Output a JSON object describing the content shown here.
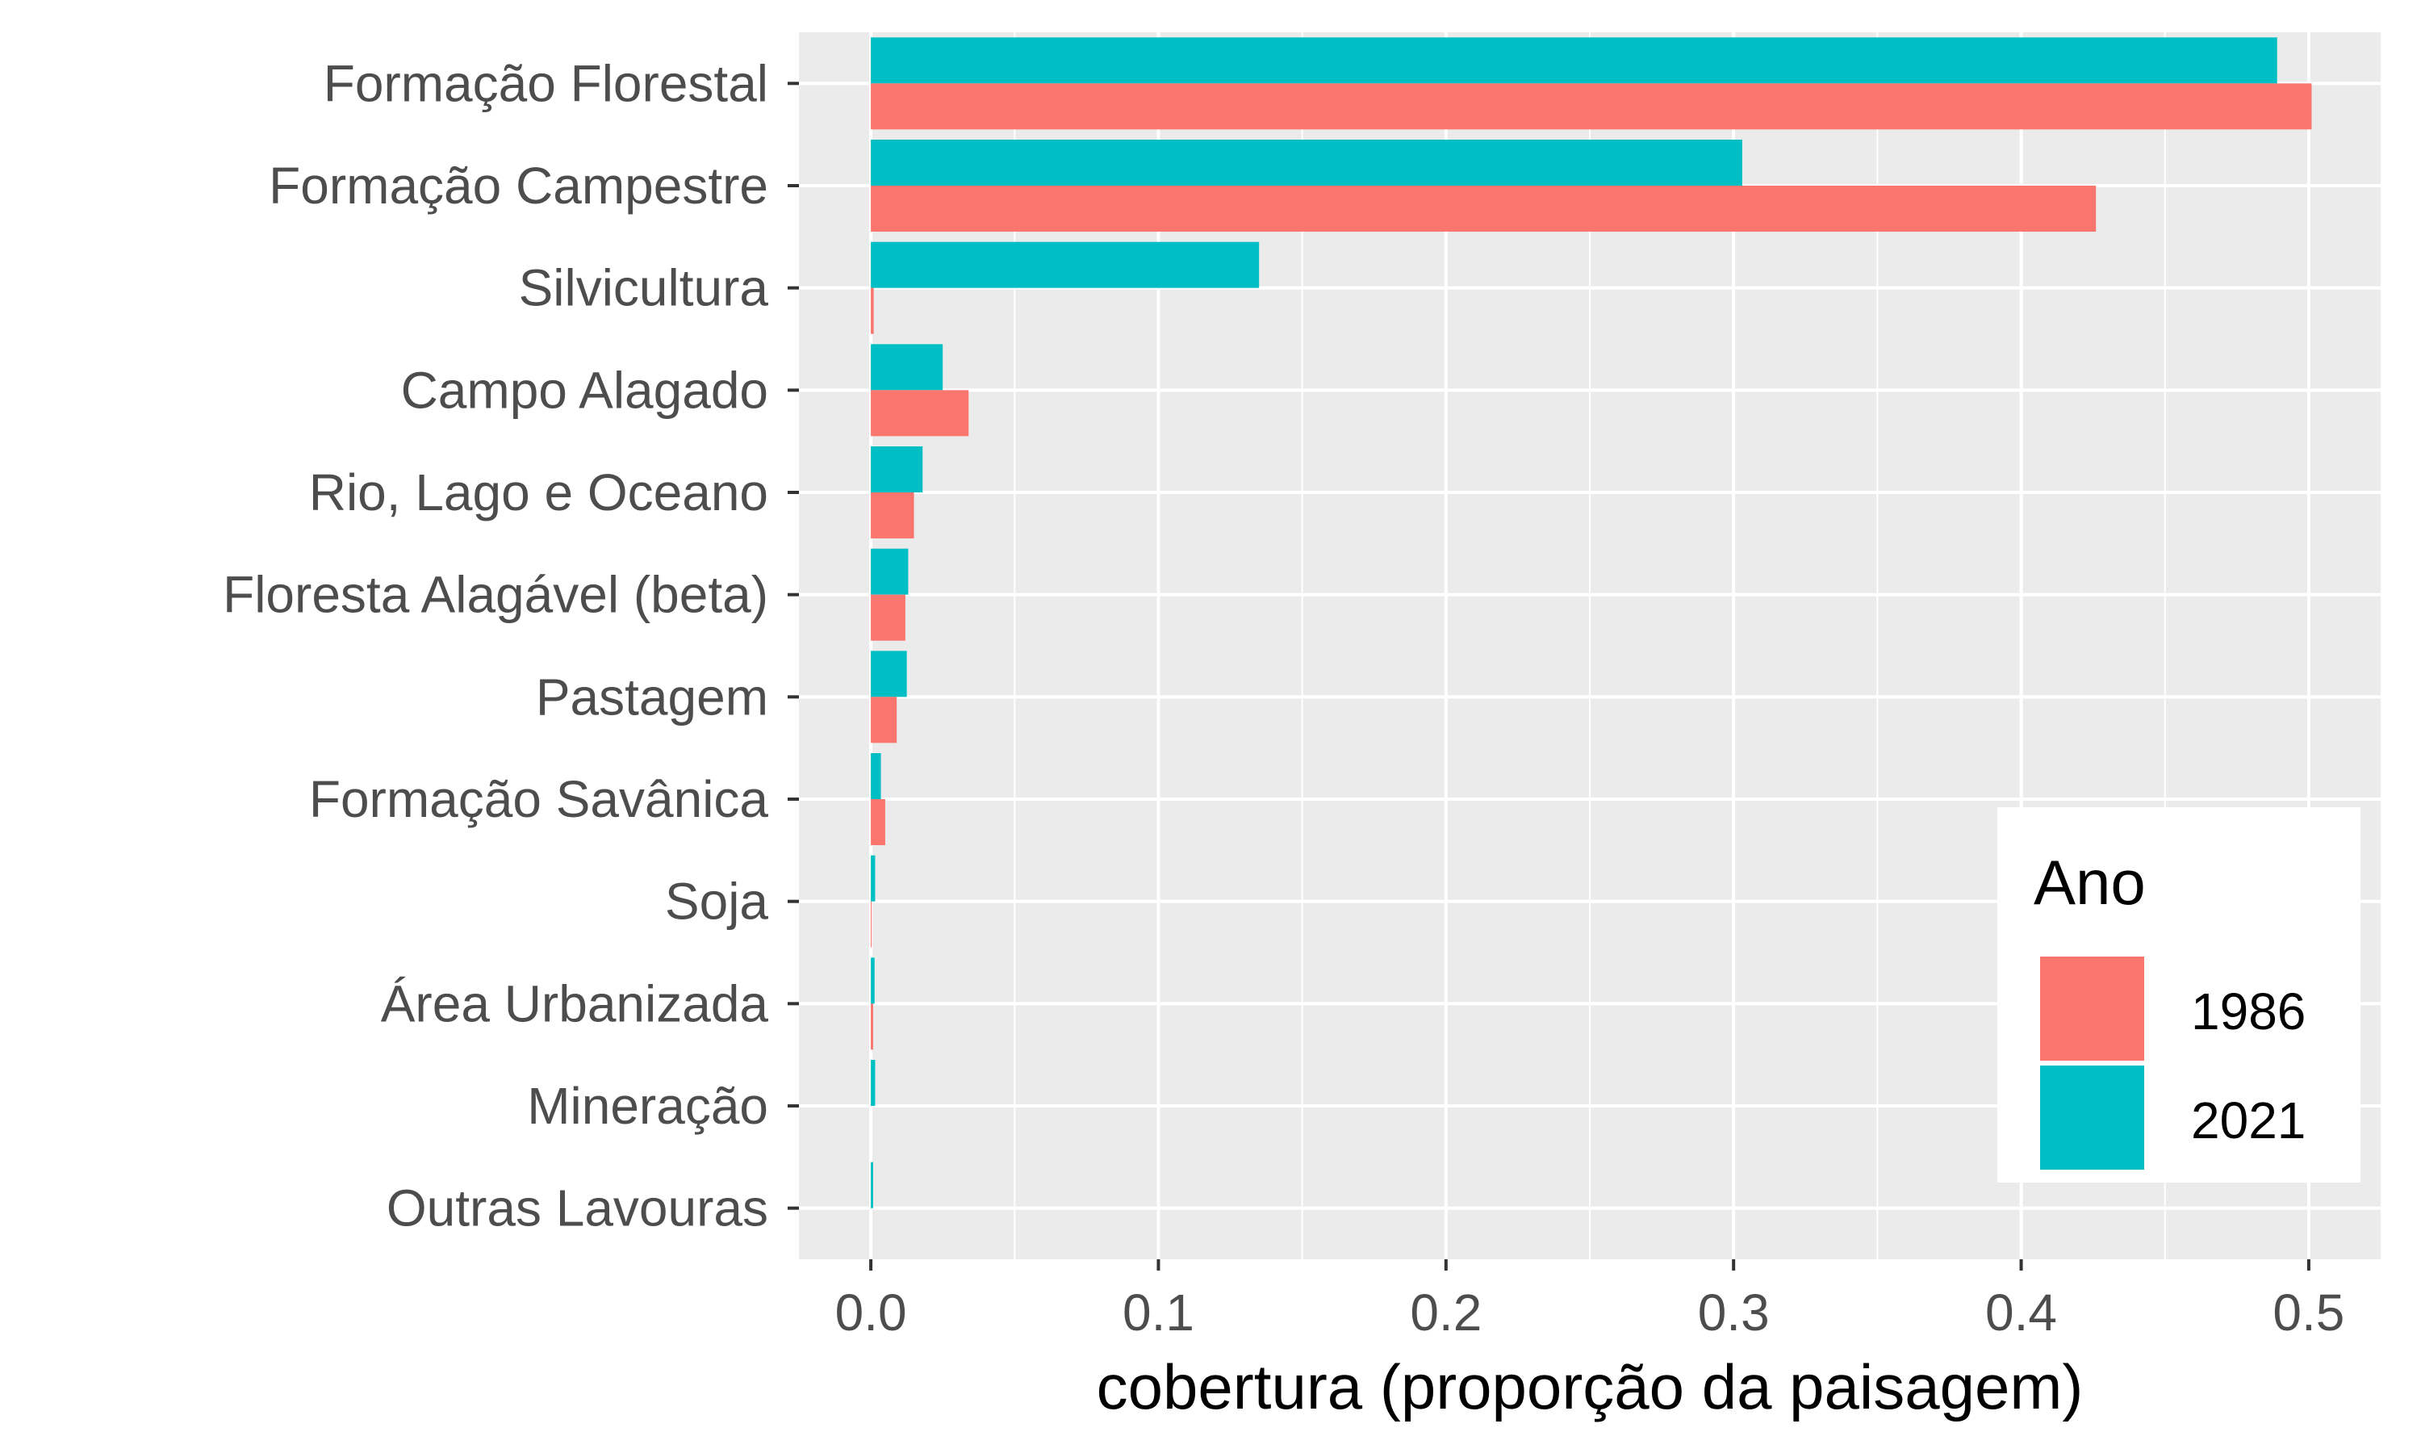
{
  "chart_data": {
    "type": "bar",
    "orientation": "horizontal",
    "title": "",
    "xlabel": "cobertura (proporção da paisagem)",
    "ylabel": "",
    "xlim": [
      -0.025,
      0.525
    ],
    "xticks": [
      "0.0",
      "0.1",
      "0.2",
      "0.3",
      "0.4",
      "0.5"
    ],
    "xtick_values": [
      0.0,
      0.1,
      0.2,
      0.3,
      0.4,
      0.5
    ],
    "grid": true,
    "legend_position": "bottom-right",
    "legend_title": "Ano",
    "categories": [
      "Formação Florestal",
      "Formação Campestre",
      "Silvicultura",
      "Campo Alagado",
      "Rio, Lago e Oceano",
      "Floresta Alagável (beta)",
      "Pastagem",
      "Formação Savânica",
      "Soja",
      "Área Urbanizada",
      "Mineração",
      "Outras Lavouras"
    ],
    "series": [
      {
        "name": "1986",
        "color": "#F8766D",
        "values": [
          0.501,
          0.426,
          0.001,
          0.034,
          0.015,
          0.012,
          0.009,
          0.005,
          0.0003,
          0.0008,
          0.0,
          0.0
        ]
      },
      {
        "name": "2021",
        "color": "#00BFC4",
        "values": [
          0.489,
          0.303,
          0.135,
          0.025,
          0.018,
          0.013,
          0.0125,
          0.0035,
          0.0015,
          0.0013,
          0.0015,
          0.0008
        ]
      }
    ]
  }
}
